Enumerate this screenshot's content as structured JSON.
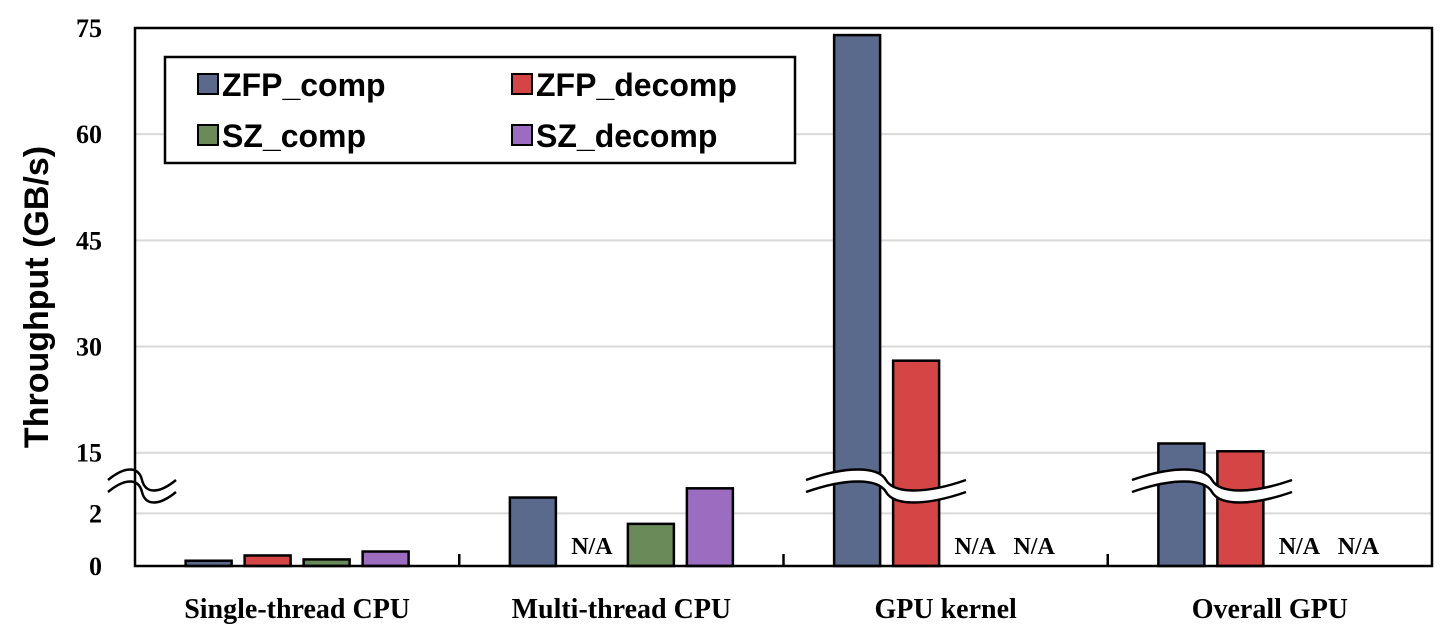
{
  "chart_data": {
    "type": "bar",
    "ylabel": "Throughput (GB/s)",
    "y_axis": {
      "broken": true,
      "lower_range": [
        0,
        3
      ],
      "upper_range": [
        11,
        75
      ],
      "tick_labels": [
        "0",
        "2",
        "15",
        "30",
        "45",
        "60",
        "75"
      ],
      "tick_values": [
        0,
        2,
        15,
        30,
        45,
        60,
        75
      ]
    },
    "grid": true,
    "legend_position": "top-left",
    "categories": [
      "Single-thread CPU",
      "Multi-thread CPU",
      "GPU kernel",
      "Overall GPU"
    ],
    "series": [
      {
        "name": "ZFP_comp",
        "color": "#5a6a8c",
        "values": [
          0.2,
          2.6,
          74,
          16.3
        ]
      },
      {
        "name": "ZFP_decomp",
        "color": "#d64545",
        "values": [
          0.4,
          null,
          28,
          15.2
        ]
      },
      {
        "name": "SZ_comp",
        "color": "#6b8a5a",
        "values": [
          0.25,
          1.6,
          null,
          null
        ]
      },
      {
        "name": "SZ_decomp",
        "color": "#9b6cc0",
        "values": [
          0.55,
          2.95,
          null,
          null
        ]
      }
    ],
    "na_label": "N/A"
  }
}
